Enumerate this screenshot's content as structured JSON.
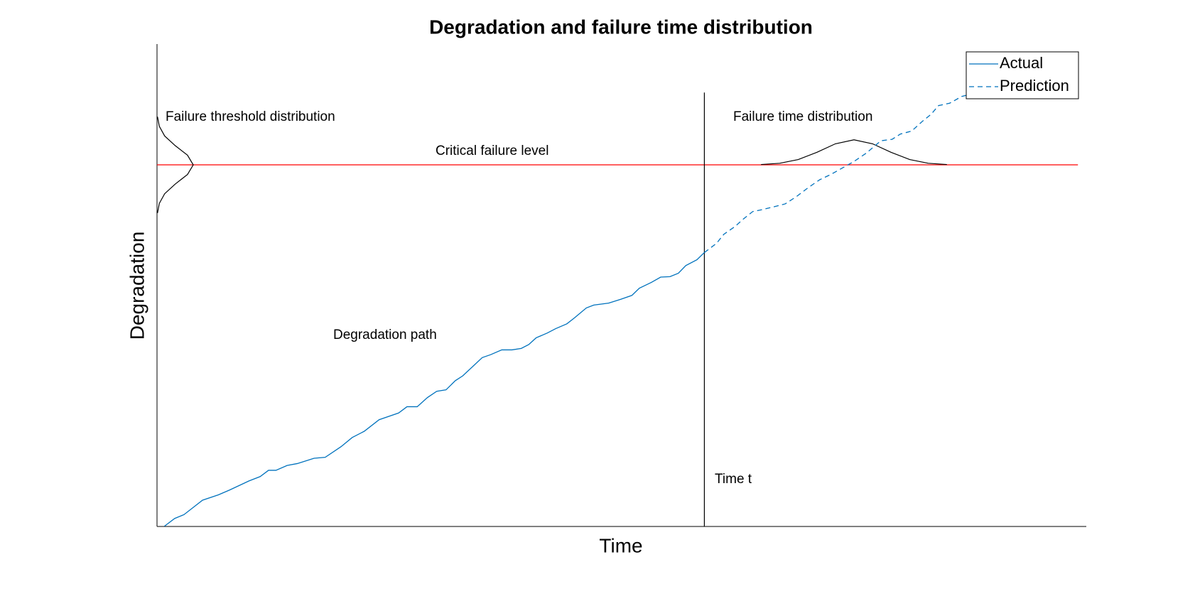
{
  "chart_data": {
    "type": "line",
    "title": "Degradation and failure time distribution",
    "x_label": "Time",
    "y_label": "Degradation",
    "xlim": [
      0,
      100
    ],
    "ylim": [
      0,
      100
    ],
    "grid": false,
    "legend": "upper right",
    "series": [
      {
        "name": "Actual",
        "color": "#0072bd",
        "style": "solid",
        "x": [
          0.8,
          1.9,
          2.9,
          4.9,
          6.6,
          7.8,
          9.9,
          11.1,
          12.0,
          12.8,
          14.0,
          15.1,
          16.9,
          18.1,
          19.8,
          21.0,
          22.3,
          23.9,
          26.0,
          26.9,
          28.0,
          29.1,
          30.1,
          31.1,
          32.1,
          32.9,
          35.0,
          35.9,
          37.1,
          38.2,
          39.2,
          40.0,
          40.8,
          42.0,
          42.9,
          44.1,
          44.9,
          46.2,
          47.0,
          48.6,
          49.9,
          51.1,
          51.9,
          53.2,
          54.2,
          55.2,
          56.1,
          56.9,
          58.1,
          58.9
        ],
        "values": [
          0,
          1.6,
          2.4,
          5.4,
          6.5,
          7.5,
          9.4,
          10.3,
          11.6,
          11.6,
          12.6,
          13.0,
          14.1,
          14.3,
          16.5,
          18.4,
          19.7,
          22.1,
          23.5,
          24.8,
          24.8,
          26.7,
          28.0,
          28.3,
          30.2,
          31.2,
          35.0,
          35.6,
          36.6,
          36.6,
          36.9,
          37.7,
          39.1,
          40.1,
          41.0,
          42.0,
          43.2,
          45.3,
          45.9,
          46.3,
          47.1,
          47.9,
          49.4,
          50.6,
          51.7,
          51.8,
          52.5,
          54.1,
          55.3,
          56.8
        ]
      },
      {
        "name": "Prediction",
        "color": "#0072bd",
        "style": "dashed",
        "x": [
          58.9,
          60.2,
          61.0,
          62.2,
          63.0,
          64.1,
          65.1,
          66.4,
          67.6,
          68.8,
          70.1,
          71.3,
          72.5,
          73.8,
          75.0,
          76.3,
          77.9,
          79.1,
          80.0,
          81.2,
          82.4,
          83.3,
          84.1,
          85.3,
          86.6,
          87.2
        ],
        "values": [
          56.8,
          58.7,
          60.6,
          62.2,
          63.6,
          65.3,
          65.7,
          66.3,
          66.9,
          68.4,
          70.3,
          71.9,
          73.0,
          74.4,
          75.7,
          77.4,
          80.0,
          80.3,
          81.4,
          82.0,
          84.1,
          85.5,
          87.3,
          87.8,
          89.2,
          89.5
        ]
      }
    ],
    "critical_level": {
      "label": "Critical failure level",
      "value": 75.0,
      "xlim": [
        0,
        99.1
      ],
      "color": "#ff0000"
    },
    "time_t": {
      "label": "Time t",
      "value": 58.9,
      "ylim": [
        0,
        90.0
      ],
      "color": "#000000"
    },
    "threshold_distribution": {
      "label": "Failure threshold distribution",
      "color": "#000000",
      "x": [
        0.05,
        0.25,
        0.82,
        1.95,
        3.28,
        3.9,
        3.28,
        1.95,
        0.82,
        0.25,
        0.05
      ],
      "y": [
        65,
        67,
        69,
        71,
        73,
        75,
        77,
        79,
        81,
        83,
        85
      ]
    },
    "failure_time_distribution": {
      "label": "Failure time distribution",
      "color": "#000000",
      "x": [
        65,
        67,
        69,
        71,
        73,
        75,
        77,
        79,
        81,
        83,
        85
      ],
      "y": [
        75.07,
        75.33,
        76.1,
        77.6,
        79.37,
        80.2,
        79.37,
        77.6,
        76.1,
        75.33,
        75.07
      ]
    },
    "path_label": "Degradation path"
  }
}
